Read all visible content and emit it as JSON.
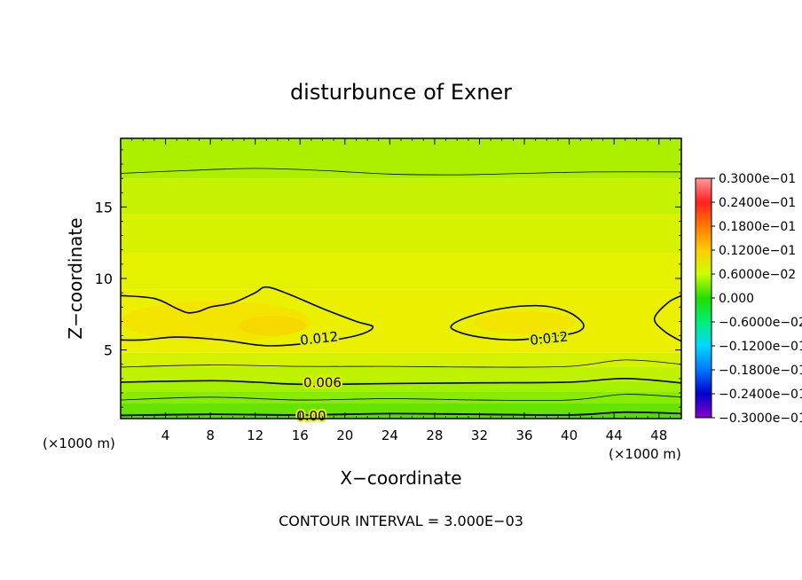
{
  "chart_data": {
    "type": "heatmap",
    "title": "disturbunce of Exner",
    "xlabel": "X−coordinate",
    "ylabel": "Z−coordinate",
    "x_unit_left": "(×1000 m)",
    "x_unit_right": "(×1000 m)",
    "footer": "CONTOUR INTERVAL = 3.000E−03",
    "xlim": [
      0,
      50
    ],
    "ylim": [
      0.2,
      19.8
    ],
    "x_ticks": [
      4,
      8,
      12,
      16,
      20,
      24,
      28,
      32,
      36,
      40,
      44,
      48
    ],
    "x_tick_labels": [
      "4",
      "8",
      "12",
      "16",
      "20",
      "24",
      "28",
      "32",
      "36",
      "40",
      "44",
      "48"
    ],
    "y_ticks": [
      5,
      10,
      15
    ],
    "y_tick_labels": [
      "5",
      "10",
      "15"
    ],
    "contour_labels": [
      {
        "text": "0.012",
        "x": 17.7,
        "z": 5.8,
        "angle": -6
      },
      {
        "text": "0.012",
        "x": 38.2,
        "z": 5.8,
        "angle": -6
      },
      {
        "text": "0.006",
        "x": 18.0,
        "z": 2.7,
        "angle": 0
      },
      {
        "text": "0.00",
        "x": 17.0,
        "z": 0.4,
        "angle": 0
      }
    ],
    "colorbar": {
      "range": [
        -0.03,
        0.03
      ],
      "labels": [
        "0.3000e−01",
        "0.2400e−01",
        "0.1800e−01",
        "0.1200e−01",
        "0.6000e−02",
        "0.000",
        "−0.6000e−02",
        "−0.1200e−01",
        "−0.1800e−01",
        "−0.2400e−01",
        "−0.3000e−01"
      ],
      "colors": [
        "#ff9999",
        "#ff2020",
        "#ff7a00",
        "#ffcc00",
        "#ccff00",
        "#22dd00",
        "#00ee77",
        "#00d8ff",
        "#0077ff",
        "#0000cc",
        "#8a00c8"
      ]
    },
    "field_bands": [
      {
        "z_from": 0.2,
        "z_to": 0.6,
        "color": "#55dd00"
      },
      {
        "z_from": 0.6,
        "z_to": 1.3,
        "color": "#66e400"
      },
      {
        "z_from": 1.3,
        "z_to": 2.1,
        "color": "#88ec00"
      },
      {
        "z_from": 2.1,
        "z_to": 2.8,
        "color": "#a4f000"
      },
      {
        "z_from": 2.8,
        "z_to": 3.8,
        "color": "#bff200"
      },
      {
        "z_from": 3.8,
        "z_to": 4.8,
        "color": "#d4f200"
      },
      {
        "z_from": 4.8,
        "z_to": 9.2,
        "color": "#eaf000"
      },
      {
        "z_from": 9.2,
        "z_to": 11.8,
        "color": "#e4f200"
      },
      {
        "z_from": 11.8,
        "z_to": 14.5,
        "color": "#d6f200"
      },
      {
        "z_from": 14.5,
        "z_to": 17.0,
        "color": "#c4f200"
      },
      {
        "z_from": 17.0,
        "z_to": 19.8,
        "color": "#acf000"
      }
    ],
    "contours": [
      {
        "name": "level 0.000",
        "width": 1.8,
        "points": [
          [
            0,
            0.42
          ],
          [
            8,
            0.5
          ],
          [
            16,
            0.45
          ],
          [
            24,
            0.55
          ],
          [
            32,
            0.5
          ],
          [
            40,
            0.45
          ],
          [
            45,
            0.65
          ],
          [
            50,
            0.55
          ]
        ]
      },
      {
        "name": "level 0.003",
        "width": 0.8,
        "points": [
          [
            0,
            1.5
          ],
          [
            8,
            1.7
          ],
          [
            16,
            1.5
          ],
          [
            24,
            1.6
          ],
          [
            32,
            1.5
          ],
          [
            40,
            1.5
          ],
          [
            45,
            1.9
          ],
          [
            50,
            1.7
          ]
        ]
      },
      {
        "name": "level 0.006",
        "width": 1.6,
        "points": [
          [
            0,
            2.75
          ],
          [
            8,
            2.85
          ],
          [
            12,
            2.75
          ],
          [
            16,
            2.6
          ],
          [
            24,
            2.65
          ],
          [
            32,
            2.7
          ],
          [
            40,
            2.75
          ],
          [
            45,
            3.0
          ],
          [
            50,
            2.7
          ]
        ]
      },
      {
        "name": "level 0.009",
        "width": 0.8,
        "points": [
          [
            0,
            3.8
          ],
          [
            8,
            3.95
          ],
          [
            16,
            3.85
          ],
          [
            24,
            3.85
          ],
          [
            32,
            3.8
          ],
          [
            40,
            3.85
          ],
          [
            45,
            4.3
          ],
          [
            50,
            4.0
          ]
        ]
      },
      {
        "name": "level 0.009 upper",
        "width": 0.8,
        "points": [
          [
            0,
            17.35
          ],
          [
            6,
            17.55
          ],
          [
            12,
            17.7
          ],
          [
            18,
            17.55
          ],
          [
            24,
            17.3
          ],
          [
            30,
            17.25
          ],
          [
            36,
            17.35
          ],
          [
            42,
            17.45
          ],
          [
            50,
            17.45
          ]
        ]
      },
      {
        "name": "level 0.012 left",
        "width": 1.6,
        "closed": false,
        "points": [
          [
            0,
            8.8
          ],
          [
            3,
            8.6
          ],
          [
            5,
            7.9
          ],
          [
            6,
            7.6
          ],
          [
            7,
            7.7
          ],
          [
            8,
            8.0
          ],
          [
            10,
            8.3
          ],
          [
            12,
            9.0
          ],
          [
            13,
            9.4
          ],
          [
            15,
            8.9
          ],
          [
            18,
            7.9
          ],
          [
            21,
            7.0
          ],
          [
            22.5,
            6.6
          ],
          [
            21,
            6.0
          ],
          [
            17,
            5.5
          ],
          [
            13,
            5.3
          ],
          [
            9,
            5.7
          ],
          [
            5,
            5.9
          ],
          [
            2,
            5.7
          ],
          [
            0,
            5.7
          ]
        ]
      },
      {
        "name": "level 0.012 middle",
        "width": 1.6,
        "closed": true,
        "points": [
          [
            29.5,
            6.7
          ],
          [
            31,
            7.3
          ],
          [
            34,
            7.9
          ],
          [
            37,
            8.1
          ],
          [
            39,
            7.9
          ],
          [
            40.5,
            7.4
          ],
          [
            41.3,
            6.7
          ],
          [
            40.5,
            6.2
          ],
          [
            38,
            5.9
          ],
          [
            35,
            5.7
          ],
          [
            32,
            5.9
          ],
          [
            30,
            6.3
          ]
        ]
      },
      {
        "name": "level 0.012 right",
        "width": 1.6,
        "closed": false,
        "points": [
          [
            50,
            8.8
          ],
          [
            48.8,
            8.3
          ],
          [
            47.6,
            7.2
          ],
          [
            48.5,
            6.3
          ],
          [
            50,
            5.6
          ]
        ]
      }
    ],
    "warm_patches": [
      {
        "cx": 8.5,
        "cz": 7.0,
        "rx": 8.5,
        "rz": 1.4,
        "color": "#fadc00",
        "opacity": 0.55
      },
      {
        "cx": 13.5,
        "cz": 6.7,
        "rx": 3.0,
        "rz": 0.7,
        "color": "#f9d000",
        "opacity": 0.6
      },
      {
        "cx": 36.0,
        "cz": 6.9,
        "rx": 4.5,
        "rz": 0.8,
        "color": "#fadc00",
        "opacity": 0.55
      }
    ]
  }
}
